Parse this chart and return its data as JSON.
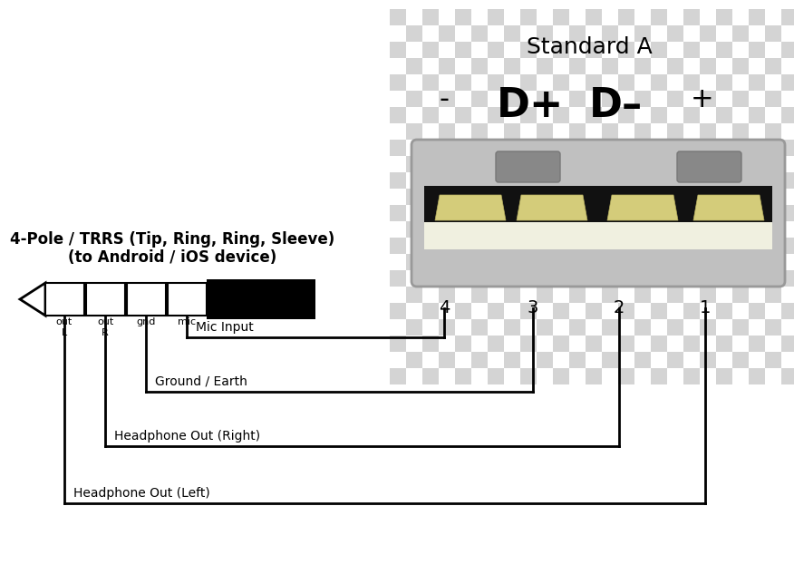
{
  "title": "Standard A",
  "bg_color": "#ffffff",
  "trrs_title1": "4-Pole / TRRS (Tip, Ring, Ring, Sleeve)",
  "trrs_title2": "(to Android / iOS device)",
  "trrs_labels": [
    "out\nL",
    "out\nR",
    "gnd",
    "mic"
  ],
  "usb_labels": [
    "-",
    "D+",
    "D–",
    "+"
  ],
  "usb_pin_numbers": [
    "4",
    "3",
    "2",
    "1"
  ],
  "connection_labels": [
    "Mic Input",
    "Ground / Earth",
    "Headphone Out (Right)",
    "Headphone Out (Left)"
  ],
  "line_color": "#000000",
  "text_color": "#000000",
  "checker_light": "#d4d4d4",
  "checker_dark": "#ffffff",
  "usb_body_color": "#c0c0c0",
  "usb_body_edge": "#999999",
  "usb_black": "#111111",
  "usb_cream": "#f0f0e0",
  "usb_gold": "#d4cc7a",
  "usb_notch": "#888888"
}
